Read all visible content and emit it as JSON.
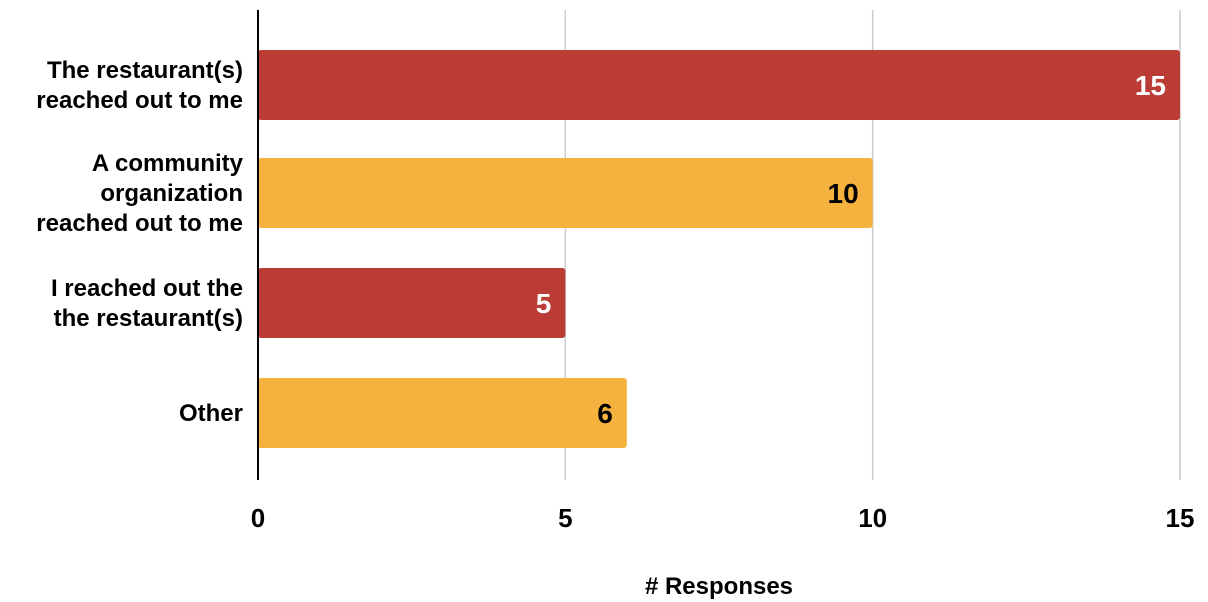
{
  "chart_data": {
    "type": "bar",
    "orientation": "horizontal",
    "categories": [
      [
        "The restaurant(s)",
        "reached out to me"
      ],
      [
        "A community",
        "organization",
        "reached out to me"
      ],
      [
        "I reached out the",
        "the restaurant(s)"
      ],
      [
        "Other"
      ]
    ],
    "values": [
      15,
      10,
      5,
      6
    ],
    "bar_colors": [
      "#bb3b35",
      "#f6b23e",
      "#bb3b35",
      "#f6b23e"
    ],
    "label_colors": [
      "#ffffff",
      "#000000",
      "#ffffff",
      "#000000"
    ],
    "xlabel": "# Responses",
    "ylabel": "",
    "title": "",
    "xlim": [
      0,
      15
    ],
    "xticks": [
      0,
      5,
      10,
      15
    ],
    "grid": true,
    "grid_color": "#cccccc",
    "axis_color": "#000000"
  }
}
